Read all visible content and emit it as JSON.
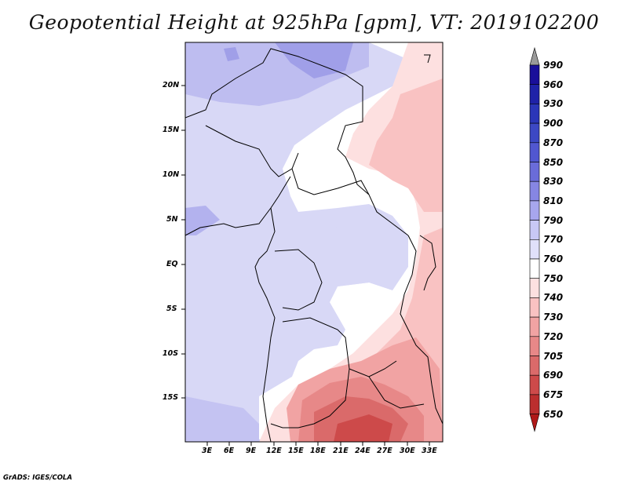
{
  "title": "Geopotential Height at 925hPa [gpm], VT: 2019102200",
  "footer": "GrADS: IGES/COLA",
  "lat_labels": [
    "20N",
    "15N",
    "10N",
    "5N",
    "EQ",
    "5S",
    "10S",
    "15S"
  ],
  "lon_labels": [
    "3E",
    "6E",
    "9E",
    "12E",
    "15E",
    "18E",
    "21E",
    "24E",
    "27E",
    "30E",
    "33E"
  ],
  "colorbar": {
    "levels": [
      "990",
      "960",
      "930",
      "900",
      "870",
      "850",
      "830",
      "810",
      "790",
      "770",
      "760",
      "750",
      "740",
      "730",
      "720",
      "705",
      "690",
      "675",
      "650"
    ],
    "colors": [
      "#9a9a9a",
      "#1a0f9a",
      "#1f22a8",
      "#2b36b8",
      "#3c48c4",
      "#5157d0",
      "#6a6cd9",
      "#8686e3",
      "#a7a6ee",
      "#c8c8f5",
      "#e0e0fa",
      "#ffffff",
      "#fde0e0",
      "#f9c2c2",
      "#f1a3a3",
      "#e78888",
      "#da6a6a",
      "#cd4a4a",
      "#bb2e2e",
      "#b01818"
    ],
    "arrow_top_color": "#9a9a9a",
    "arrow_bottom_color": "#b01818"
  }
}
